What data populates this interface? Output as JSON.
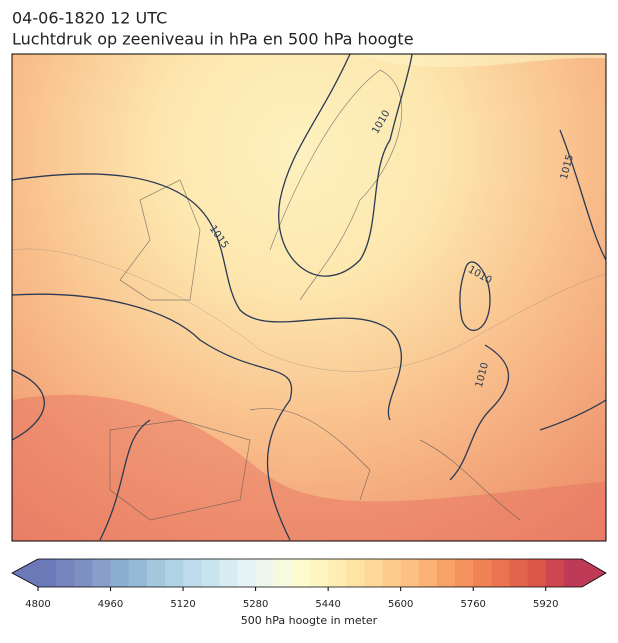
{
  "header": {
    "title_lines": [
      "04-06-1820 12 UTC",
      "Luchtdruk op zeeniveau in hPa en 500 hPa hoogte"
    ]
  },
  "map": {
    "isobar_labels": [
      1010,
      1015,
      1015,
      1010,
      1010
    ]
  },
  "colorbar": {
    "range": [
      4800,
      6000
    ],
    "ticks": [
      4800,
      4960,
      5120,
      5280,
      5440,
      5600,
      5760,
      5920
    ],
    "label": "500 hPa hoogte in meter",
    "colors": [
      "#6b79b9",
      "#7584bd",
      "#7f90c3",
      "#899fc9",
      "#8aaed0",
      "#96bad6",
      "#a3c8de",
      "#b0d2e5",
      "#bddbea",
      "#cae4ef",
      "#d7ecf3",
      "#e5f3f4",
      "#eef8ee",
      "#f6fbe0",
      "#fcfcd0",
      "#fef6c0",
      "#feeeb2",
      "#fee3a4",
      "#fdd898",
      "#fdcc8c",
      "#fcc082",
      "#fbb274",
      "#f9a267",
      "#f5925e",
      "#f08255",
      "#ec7350",
      "#e3644d",
      "#db5649",
      "#cd4650",
      "#bf3a56"
    ]
  }
}
